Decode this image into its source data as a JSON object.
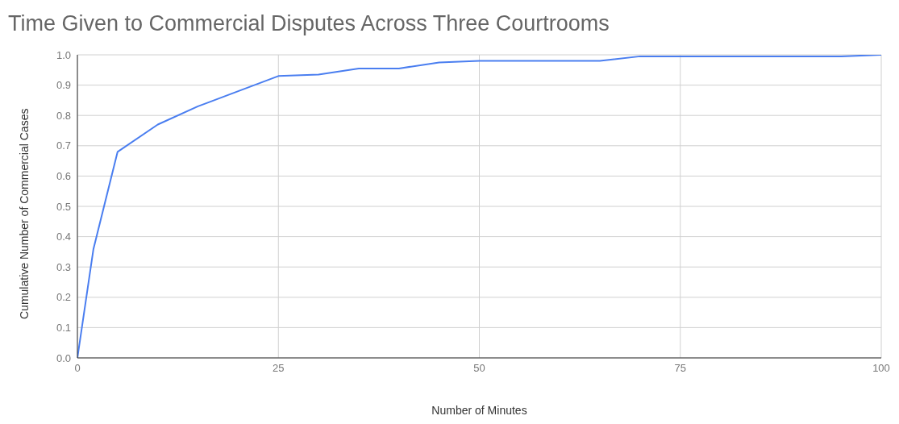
{
  "chart_data": {
    "type": "line",
    "title": "Time Given to Commercial Disputes Across Three Courtrooms",
    "xlabel": "Number of Minutes",
    "ylabel": "Cumulative Number of Commercial Cases",
    "x": [
      0,
      2,
      5,
      10,
      15,
      20,
      25,
      30,
      35,
      40,
      45,
      50,
      65,
      70,
      95,
      100
    ],
    "series": [
      {
        "color": "#4a7ef0",
        "values": [
          0,
          0.36,
          0.68,
          0.77,
          0.83,
          0.88,
          0.93,
          0.935,
          0.955,
          0.955,
          0.975,
          0.98,
          0.98,
          0.995,
          0.995,
          1.0
        ]
      }
    ],
    "xlim": [
      0,
      100
    ],
    "xticks": [
      0,
      25,
      50,
      75,
      100
    ],
    "ylim": [
      0,
      1
    ],
    "yticks": [
      {
        "value": 0,
        "label": "0.0"
      },
      {
        "value": 0.1,
        "label": "0.1"
      },
      {
        "value": 0.2,
        "label": "0.2"
      },
      {
        "value": 0.3,
        "label": "0.3"
      },
      {
        "value": 0.4,
        "label": "0.4"
      },
      {
        "value": 0.5,
        "label": "0.5"
      },
      {
        "value": 0.6,
        "label": "0.6"
      },
      {
        "value": 0.7,
        "label": "0.7"
      },
      {
        "value": 0.8,
        "label": "0.8"
      },
      {
        "value": 0.9,
        "label": "0.9"
      },
      {
        "value": 1,
        "label": "1.0"
      }
    ],
    "grid": true,
    "marker": "none",
    "line_style": "solid",
    "legend": false
  }
}
